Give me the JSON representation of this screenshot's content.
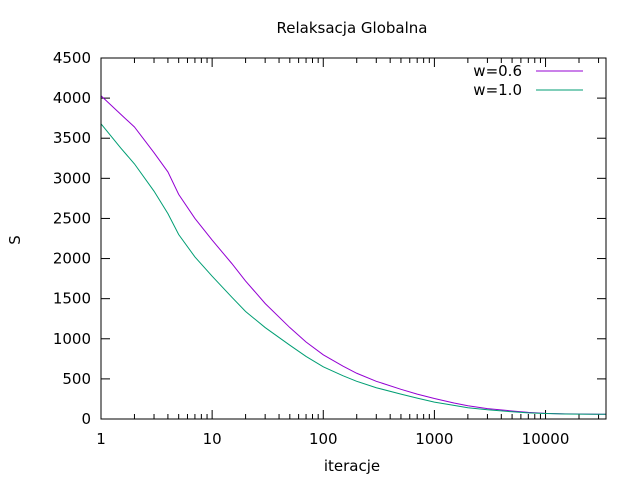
{
  "chart_data": {
    "type": "line",
    "title": "Relaksacja Globalna",
    "xlabel": "iteracje",
    "ylabel": "S",
    "xscale": "log",
    "xlim": [
      1,
      35000
    ],
    "ylim": [
      0,
      4500
    ],
    "xticks": [
      1,
      10,
      100,
      1000,
      10000
    ],
    "xtick_labels": [
      "1",
      "10",
      "100",
      "1000",
      "10000"
    ],
    "yticks": [
      0,
      500,
      1000,
      1500,
      2000,
      2500,
      3000,
      3500,
      4000,
      4500
    ],
    "ytick_labels": [
      "0",
      "500",
      "1000",
      "1500",
      "2000",
      "2500",
      "3000",
      "3500",
      "4000",
      "4500"
    ],
    "grid": false,
    "legend_position": "top-right",
    "series": [
      {
        "name": "w=0.6",
        "color": "#9400d3",
        "x": [
          1,
          1.5,
          2,
          3,
          4,
          5,
          7,
          10,
          15,
          20,
          30,
          50,
          70,
          100,
          150,
          200,
          300,
          500,
          700,
          1000,
          1500,
          2000,
          3000,
          5000,
          7000,
          10000,
          15000,
          20000,
          30000,
          35000
        ],
        "y": [
          4030,
          3800,
          3640,
          3320,
          3080,
          2800,
          2500,
          2230,
          1940,
          1720,
          1440,
          1140,
          960,
          800,
          660,
          570,
          470,
          370,
          310,
          255,
          200,
          165,
          130,
          100,
          82,
          70,
          64,
          62,
          60,
          60
        ]
      },
      {
        "name": "w=1.0",
        "color": "#009e73",
        "x": [
          1,
          1.5,
          2,
          3,
          4,
          5,
          7,
          10,
          15,
          20,
          30,
          50,
          70,
          100,
          150,
          200,
          300,
          500,
          700,
          1000,
          1500,
          2000,
          3000,
          5000,
          7000,
          10000,
          15000,
          20000,
          30000,
          35000
        ],
        "y": [
          3680,
          3380,
          3180,
          2840,
          2560,
          2300,
          2020,
          1780,
          1520,
          1340,
          1140,
          920,
          780,
          650,
          540,
          470,
          390,
          310,
          260,
          210,
          170,
          140,
          115,
          90,
          77,
          68,
          63,
          61,
          60,
          60
        ]
      }
    ]
  }
}
